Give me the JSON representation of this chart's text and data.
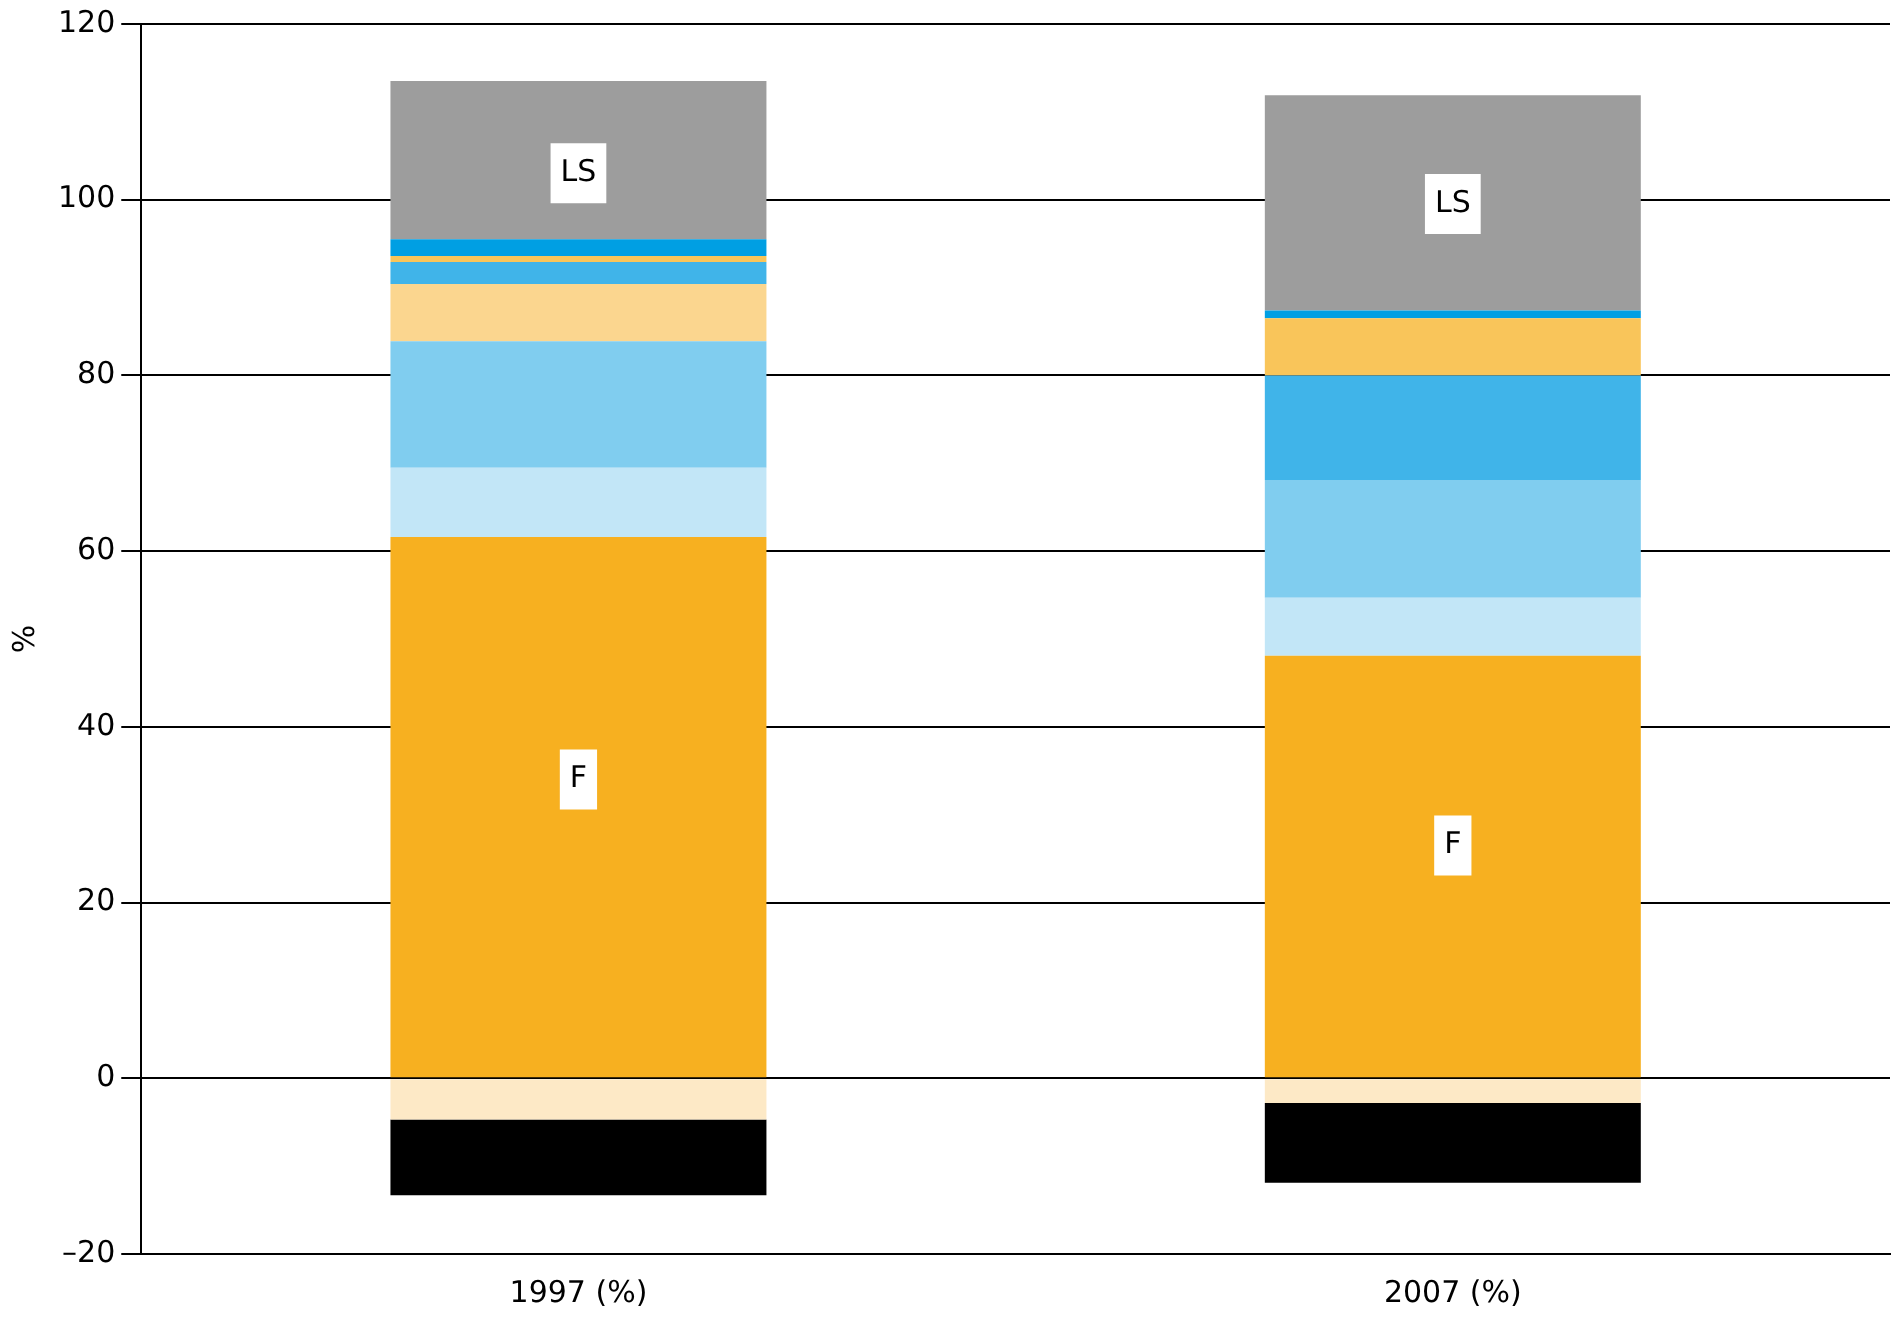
{
  "chart_data": {
    "type": "bar",
    "stacked": true,
    "ylabel": "%",
    "categories": [
      "1997 (%)",
      "2007 (%)"
    ],
    "series": [
      {
        "color": "#f7b020",
        "values": [
          61.6,
          48.1
        ]
      },
      {
        "color": "#c2e6f7",
        "values": [
          7.9,
          6.6
        ]
      },
      {
        "color": "#80cdef",
        "values": [
          14.4,
          13.4
        ]
      },
      {
        "color": "#fbd68f",
        "values": [
          6.5,
          null
        ]
      },
      {
        "color": "#40b4e9",
        "values": [
          2.5,
          11.9
        ]
      },
      {
        "color": "#f9c55a",
        "values": [
          0.7,
          6.5
        ]
      },
      {
        "color": "#009fe3",
        "values": [
          1.9,
          0.9
        ]
      },
      {
        "color": "#9d9d9d",
        "values": [
          18.0,
          24.5
        ]
      },
      {
        "color": "#fde9c6",
        "values": [
          -4.7,
          -2.8
        ]
      },
      {
        "color": "#000000",
        "values": [
          -8.6,
          -9.1
        ]
      }
    ],
    "ylim": [
      -20,
      120
    ],
    "yticks": [
      {
        "value": -20,
        "label": "–20"
      },
      0,
      20,
      40,
      60,
      80,
      100,
      120
    ],
    "grid": "y",
    "legend": false,
    "annotations": [
      {
        "text": "LS",
        "x": "1997 (%)",
        "y": 103
      },
      {
        "text": "LS",
        "x": "2007 (%)",
        "y": 99.5
      },
      {
        "text": "F",
        "x": "1997 (%)",
        "y": 34
      },
      {
        "text": "F",
        "x": "2007 (%)",
        "y": 26.5
      }
    ]
  }
}
